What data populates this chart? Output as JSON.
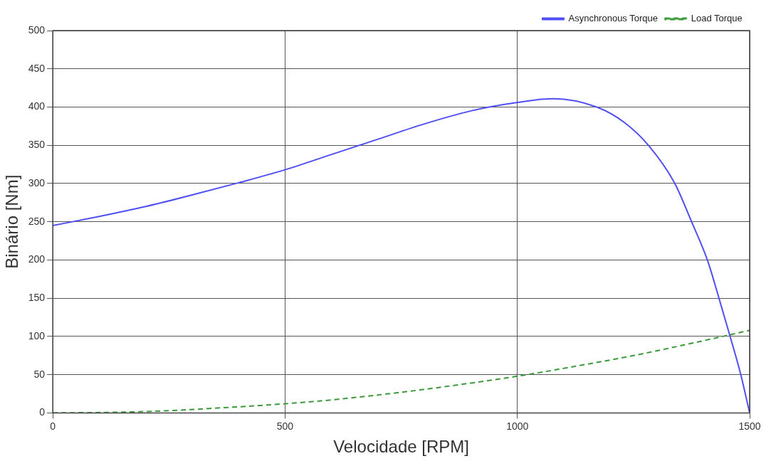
{
  "chart_data": {
    "type": "line",
    "xlabel": "Velocidade [RPM]",
    "ylabel": "Binário [Nm]",
    "xlim": [
      0,
      1500
    ],
    "xticks": [
      0,
      500,
      1000,
      1500
    ],
    "ylim": [
      0,
      500
    ],
    "yticks": [
      0,
      50,
      100,
      150,
      200,
      250,
      300,
      350,
      400,
      450,
      500
    ],
    "grid": true,
    "legend": "top right",
    "series": [
      {
        "name": "Asynchronous Torque",
        "color": "#4f4ff5",
        "line_style": "solid",
        "x": [
          0,
          100,
          200,
          300,
          400,
          500,
          600,
          700,
          800,
          900,
          1000,
          1078,
          1171,
          1230,
          1282,
          1339,
          1375,
          1409,
          1434,
          1458,
          1481,
          1500
        ],
        "values": [
          245,
          257,
          270,
          285,
          301,
          318,
          338,
          358,
          378,
          395,
          406,
          411,
          400,
          380,
          350,
          300,
          250,
          200,
          150,
          100,
          50,
          0
        ]
      },
      {
        "name": "Load Torque",
        "color": "#3a9a3a",
        "line_style": "dashed",
        "x": [
          0,
          150,
          250,
          400,
          500,
          600,
          750,
          900,
          1000,
          1125,
          1250,
          1375,
          1500
        ],
        "values": [
          0,
          1,
          3,
          8,
          12,
          17,
          27,
          39,
          48,
          61,
          75,
          91,
          108
        ]
      }
    ]
  }
}
